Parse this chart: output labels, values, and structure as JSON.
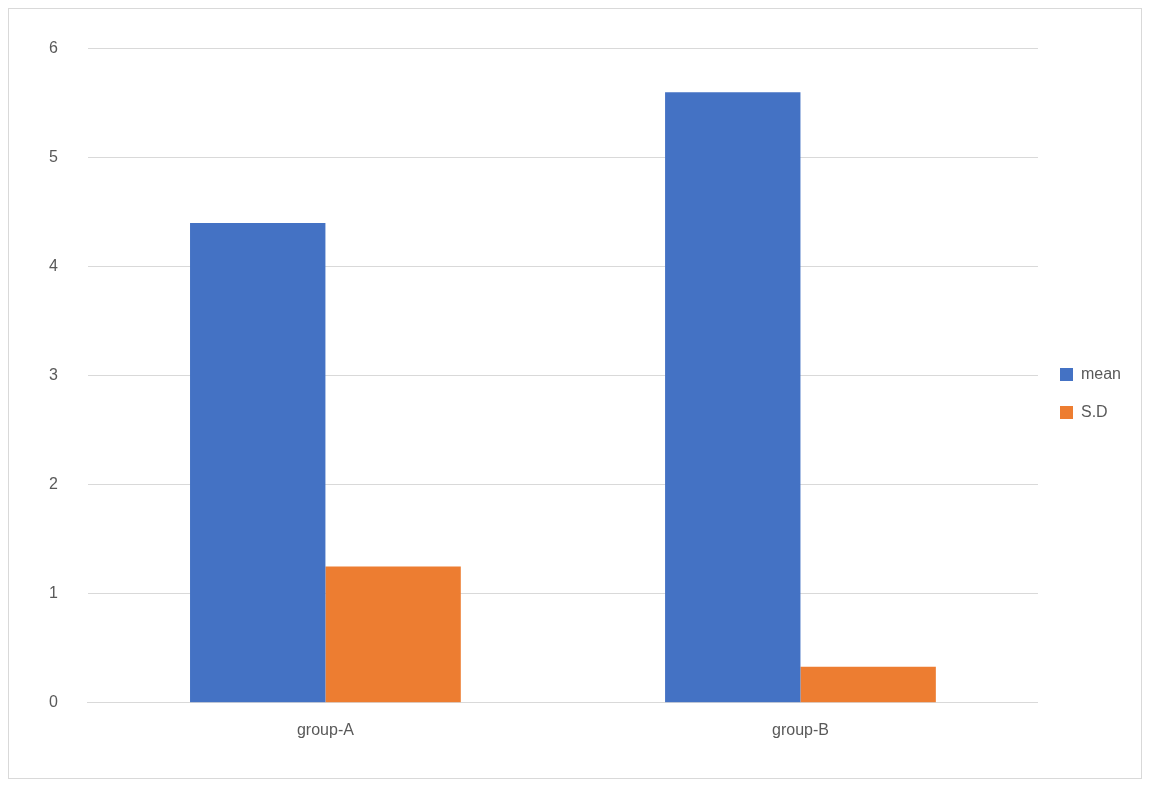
{
  "chart_data": {
    "type": "bar",
    "categories": [
      "group-A",
      "group-B"
    ],
    "series": [
      {
        "name": "mean",
        "color": "#4472c4",
        "values": [
          4.4,
          5.6
        ]
      },
      {
        "name": "S.D",
        "color": "#ed7d31",
        "values": [
          1.25,
          0.33
        ]
      }
    ],
    "ylim": [
      0,
      6
    ],
    "yticks": [
      0,
      1,
      2,
      3,
      4,
      5,
      6
    ],
    "grid": "y",
    "legend": "right"
  }
}
